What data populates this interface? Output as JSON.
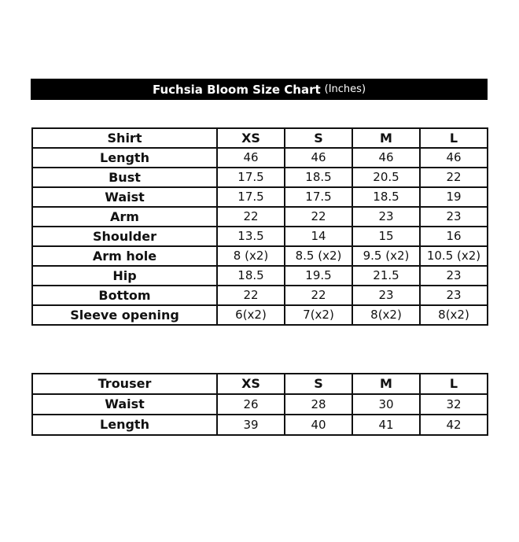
{
  "title": {
    "main": "Fuchsia Bloom Size Chart",
    "unit": "(Inches)"
  },
  "shirt": {
    "header": [
      "Shirt",
      "XS",
      "S",
      "M",
      "L"
    ],
    "rows": [
      [
        "Length",
        "46",
        "46",
        "46",
        "46"
      ],
      [
        "Bust",
        "17.5",
        "18.5",
        "20.5",
        "22"
      ],
      [
        "Waist",
        "17.5",
        "17.5",
        "18.5",
        "19"
      ],
      [
        "Arm",
        "22",
        "22",
        "23",
        "23"
      ],
      [
        "Shoulder",
        "13.5",
        "14",
        "15",
        "16"
      ],
      [
        "Arm hole",
        "8 (x2)",
        "8.5 (x2)",
        "9.5 (x2)",
        "10.5 (x2)"
      ],
      [
        "Hip",
        "18.5",
        "19.5",
        "21.5",
        "23"
      ],
      [
        "Bottom",
        "22",
        "22",
        "23",
        "23"
      ],
      [
        "Sleeve opening",
        "6(x2)",
        "7(x2)",
        "8(x2)",
        "8(x2)"
      ]
    ]
  },
  "trouser": {
    "header": [
      "Trouser",
      "XS",
      "S",
      "M",
      "L"
    ],
    "rows": [
      [
        "Waist",
        "26",
        "28",
        "30",
        "32"
      ],
      [
        "Length",
        "39",
        "40",
        "41",
        "42"
      ]
    ]
  }
}
